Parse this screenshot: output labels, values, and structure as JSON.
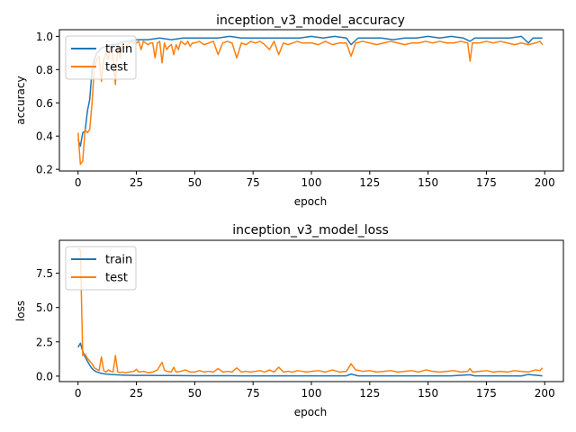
{
  "chart_data": [
    {
      "type": "line",
      "title": "inception_v3_model_accuracy",
      "xlabel": "epoch",
      "ylabel": "accuracy",
      "xlim": [
        -8,
        208
      ],
      "ylim": [
        0.19,
        1.04
      ],
      "xticks": [
        0,
        25,
        50,
        75,
        100,
        125,
        150,
        175,
        200
      ],
      "yticks": [
        0.2,
        0.4,
        0.6,
        0.8,
        1.0
      ],
      "ytick_labels": [
        "0.2",
        "0.4",
        "0.6",
        "0.8",
        "1.0"
      ],
      "legend_position": "upper-left",
      "series": [
        {
          "name": "train",
          "color": "#1f77b4",
          "x": [
            0,
            1,
            2,
            3,
            4,
            5,
            6,
            7,
            8,
            9,
            10,
            12,
            14,
            16,
            18,
            20,
            22,
            25,
            30,
            35,
            40,
            45,
            50,
            55,
            60,
            65,
            70,
            75,
            80,
            85,
            90,
            95,
            100,
            105,
            110,
            115,
            117,
            120,
            125,
            130,
            135,
            140,
            145,
            150,
            155,
            160,
            165,
            168,
            170,
            175,
            180,
            185,
            190,
            193,
            195,
            199
          ],
          "values": [
            0.38,
            0.34,
            0.42,
            0.43,
            0.55,
            0.62,
            0.8,
            0.86,
            0.9,
            0.91,
            0.93,
            0.94,
            0.95,
            0.95,
            0.96,
            0.97,
            0.97,
            0.98,
            0.98,
            0.99,
            0.98,
            0.99,
            0.99,
            0.99,
            0.99,
            1.0,
            0.99,
            0.99,
            0.99,
            0.99,
            0.99,
            0.99,
            1.0,
            0.99,
            1.0,
            0.99,
            0.95,
            0.99,
            0.99,
            0.99,
            0.98,
            0.99,
            0.99,
            1.0,
            0.99,
            1.0,
            0.99,
            0.97,
            0.99,
            0.99,
            0.99,
            0.99,
            1.0,
            0.96,
            0.99,
            0.99
          ]
        },
        {
          "name": "test",
          "color": "#ff7f0e",
          "x": [
            0,
            1,
            2,
            3,
            4,
            5,
            6,
            7,
            8,
            9,
            10,
            11,
            12,
            13,
            14,
            15,
            16,
            17,
            18,
            19,
            20,
            21,
            22,
            23,
            24,
            25,
            26,
            27,
            28,
            29,
            30,
            31,
            32,
            33,
            34,
            35,
            36,
            37,
            38,
            39,
            40,
            41,
            42,
            43,
            44,
            45,
            46,
            47,
            48,
            49,
            50,
            52,
            54,
            56,
            58,
            60,
            62,
            64,
            66,
            68,
            70,
            72,
            74,
            76,
            78,
            80,
            82,
            84,
            86,
            88,
            90,
            92,
            94,
            96,
            98,
            100,
            103,
            106,
            109,
            112,
            115,
            117,
            119,
            122,
            125,
            128,
            131,
            134,
            137,
            140,
            143,
            146,
            149,
            152,
            155,
            158,
            161,
            164,
            167,
            168,
            169,
            172,
            175,
            178,
            181,
            184,
            187,
            190,
            193,
            196,
            198,
            199
          ],
          "values": [
            0.42,
            0.23,
            0.25,
            0.44,
            0.42,
            0.44,
            0.6,
            0.82,
            0.86,
            0.88,
            0.73,
            0.86,
            0.9,
            0.86,
            0.95,
            0.87,
            0.71,
            0.95,
            0.87,
            0.95,
            0.93,
            0.95,
            0.96,
            0.97,
            0.96,
            0.96,
            0.97,
            0.92,
            0.97,
            0.96,
            0.95,
            0.96,
            0.96,
            0.87,
            0.96,
            0.97,
            0.84,
            0.96,
            0.92,
            0.94,
            0.95,
            0.89,
            0.95,
            0.92,
            0.97,
            0.96,
            0.95,
            0.97,
            0.94,
            0.96,
            0.96,
            0.97,
            0.95,
            0.96,
            0.97,
            0.89,
            0.96,
            0.97,
            0.96,
            0.87,
            0.96,
            0.95,
            0.97,
            0.96,
            0.97,
            0.95,
            0.92,
            0.97,
            0.89,
            0.96,
            0.95,
            0.96,
            0.97,
            0.96,
            0.96,
            0.96,
            0.95,
            0.97,
            0.95,
            0.96,
            0.96,
            0.88,
            0.96,
            0.97,
            0.96,
            0.95,
            0.96,
            0.97,
            0.96,
            0.95,
            0.96,
            0.96,
            0.97,
            0.96,
            0.97,
            0.96,
            0.96,
            0.97,
            0.96,
            0.85,
            0.96,
            0.96,
            0.97,
            0.96,
            0.97,
            0.96,
            0.95,
            0.96,
            0.95,
            0.96,
            0.97,
            0.95
          ]
        }
      ]
    },
    {
      "type": "line",
      "title": "inception_v3_model_loss",
      "xlabel": "epoch",
      "ylabel": "loss",
      "xlim": [
        -8,
        208
      ],
      "ylim": [
        -0.4,
        9.9
      ],
      "xticks": [
        0,
        25,
        50,
        75,
        100,
        125,
        150,
        175,
        200
      ],
      "yticks": [
        0.0,
        2.5,
        5.0,
        7.5
      ],
      "ytick_labels": [
        "0.0",
        "2.5",
        "5.0",
        "7.5"
      ],
      "legend_position": "upper-left",
      "series": [
        {
          "name": "train",
          "color": "#1f77b4",
          "x": [
            0,
            1,
            2,
            3,
            4,
            5,
            6,
            7,
            8,
            9,
            10,
            12,
            14,
            16,
            18,
            20,
            25,
            30,
            35,
            40,
            50,
            60,
            70,
            80,
            90,
            100,
            110,
            115,
            117,
            120,
            130,
            140,
            150,
            160,
            168,
            170,
            180,
            190,
            193,
            199
          ],
          "values": [
            2.1,
            2.4,
            1.8,
            1.4,
            1.1,
            0.8,
            0.55,
            0.4,
            0.3,
            0.25,
            0.2,
            0.15,
            0.12,
            0.1,
            0.08,
            0.07,
            0.05,
            0.05,
            0.04,
            0.04,
            0.03,
            0.03,
            0.02,
            0.02,
            0.02,
            0.02,
            0.02,
            0.02,
            0.15,
            0.02,
            0.02,
            0.02,
            0.02,
            0.02,
            0.1,
            0.02,
            0.02,
            0.01,
            0.12,
            0.02
          ]
        },
        {
          "name": "test",
          "color": "#ff7f0e",
          "x": [
            0,
            1,
            2,
            3,
            4,
            5,
            6,
            7,
            8,
            9,
            10,
            11,
            12,
            13,
            14,
            15,
            16,
            17,
            18,
            19,
            20,
            22,
            24,
            25,
            26,
            28,
            30,
            32,
            34,
            36,
            37,
            38,
            40,
            41,
            42,
            44,
            46,
            48,
            50,
            52,
            54,
            56,
            58,
            60,
            62,
            64,
            66,
            68,
            70,
            72,
            74,
            76,
            78,
            80,
            82,
            84,
            86,
            88,
            90,
            92,
            94,
            96,
            98,
            100,
            103,
            106,
            109,
            112,
            115,
            117,
            119,
            122,
            125,
            128,
            131,
            134,
            137,
            140,
            143,
            146,
            149,
            152,
            155,
            158,
            161,
            164,
            167,
            168,
            169,
            172,
            175,
            178,
            181,
            184,
            187,
            190,
            193,
            196,
            198,
            199
          ],
          "values": [
            9.3,
            9.2,
            1.5,
            1.6,
            1.3,
            1.1,
            0.9,
            0.6,
            0.5,
            0.4,
            1.4,
            0.4,
            0.3,
            0.45,
            0.35,
            0.3,
            1.5,
            0.3,
            0.25,
            0.3,
            0.25,
            0.3,
            0.35,
            0.5,
            0.3,
            0.35,
            0.25,
            0.3,
            0.45,
            1.0,
            0.45,
            0.35,
            0.3,
            0.65,
            0.3,
            0.35,
            0.45,
            0.3,
            0.3,
            0.4,
            0.3,
            0.35,
            0.3,
            0.55,
            0.3,
            0.35,
            0.3,
            0.6,
            0.3,
            0.35,
            0.3,
            0.35,
            0.4,
            0.3,
            0.45,
            0.3,
            0.65,
            0.3,
            0.35,
            0.3,
            0.4,
            0.35,
            0.3,
            0.35,
            0.4,
            0.3,
            0.45,
            0.3,
            0.35,
            0.9,
            0.45,
            0.35,
            0.4,
            0.3,
            0.35,
            0.4,
            0.3,
            0.35,
            0.4,
            0.3,
            0.45,
            0.35,
            0.3,
            0.35,
            0.4,
            0.3,
            0.35,
            0.55,
            0.3,
            0.35,
            0.4,
            0.3,
            0.35,
            0.3,
            0.4,
            0.35,
            0.3,
            0.45,
            0.4,
            0.6
          ]
        }
      ]
    }
  ]
}
